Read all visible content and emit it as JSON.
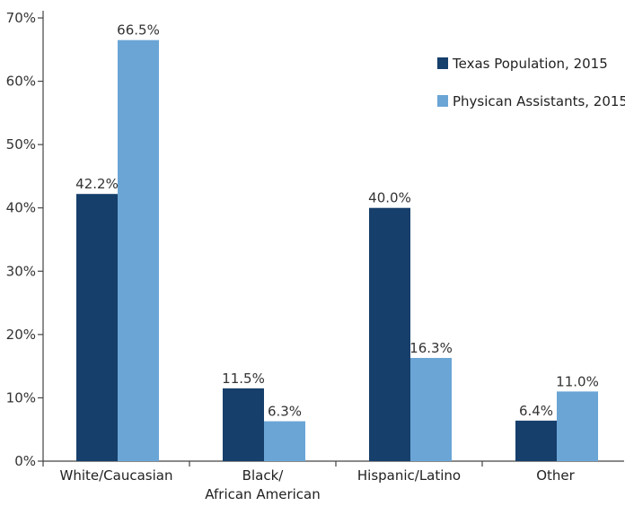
{
  "chart_data": {
    "type": "bar",
    "categories": [
      [
        "White/Caucasian"
      ],
      [
        "Black/",
        "African American"
      ],
      [
        "Hispanic/Latino"
      ],
      [
        "Other"
      ]
    ],
    "series": [
      {
        "name": "Texas Population, 2015",
        "color": "#163f6b",
        "values": [
          42.2,
          11.5,
          40.0,
          6.4
        ],
        "labels": [
          "42.2%",
          "11.5%",
          "40.0%",
          "6.4%"
        ]
      },
      {
        "name": "Physican Assistants, 2015",
        "color": "#6aa5d6",
        "values": [
          66.5,
          6.3,
          16.3,
          11.0
        ],
        "labels": [
          "66.5%",
          "6.3%",
          "16.3%",
          "11.0%"
        ]
      }
    ],
    "ylim": [
      0,
      70
    ],
    "yticks": [
      0,
      10,
      20,
      30,
      40,
      50,
      60,
      70
    ],
    "ytick_labels": [
      "0%",
      "10%",
      "20%",
      "30%",
      "40%",
      "50%",
      "60%",
      "70%"
    ],
    "legend_position": "top-right",
    "grid": false
  }
}
